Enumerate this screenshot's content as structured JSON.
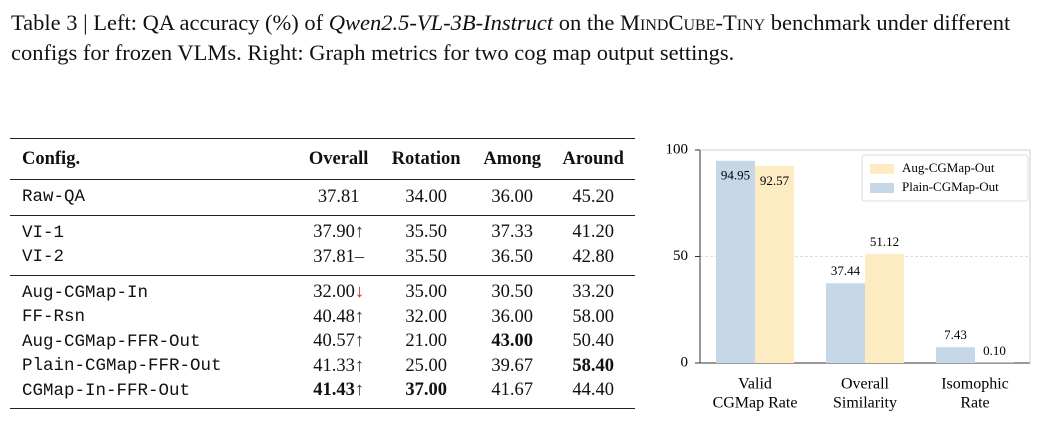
{
  "caption": {
    "prefix": "Table 3 | Left: QA accuracy (%) of",
    "model": "Qwen2.5-VL-3B-Instruct",
    "middle": "on the",
    "benchmark": "MindCube-Tiny",
    "rest": "benchmark under different configs for frozen VLMs. Right: Graph metrics for two cog map output settings."
  },
  "table": {
    "header": [
      "Config.",
      "Overall",
      "Rotation",
      "Among",
      "Around"
    ],
    "groups": [
      [
        {
          "cells": [
            "Raw-QA",
            "37.81",
            "34.00",
            "36.00",
            "45.20"
          ]
        }
      ],
      [
        {
          "cells": [
            "VI-1",
            "37.90",
            "35.50",
            "37.33",
            "41.20"
          ],
          "trend": "↑",
          "trend_dir": "up"
        },
        {
          "cells": [
            "VI-2",
            "37.81",
            "35.50",
            "36.50",
            "42.80"
          ],
          "trend": "–",
          "trend_dir": "same"
        }
      ],
      [
        {
          "cells": [
            "Aug-CGMap-In",
            "32.00",
            "35.00",
            "30.50",
            "33.20"
          ],
          "trend": "↓",
          "trend_dir": "down"
        },
        {
          "cells": [
            "FF-Rsn",
            "40.48",
            "32.00",
            "36.00",
            "58.00"
          ],
          "trend": "↑",
          "trend_dir": "up"
        },
        {
          "cells": [
            "Aug-CGMap-FFR-Out",
            "40.57",
            "21.00",
            "43.00",
            "50.40"
          ],
          "trend": "↑",
          "trend_dir": "up",
          "bold": [
            3
          ]
        },
        {
          "cells": [
            "Plain-CGMap-FFR-Out",
            "41.33",
            "25.00",
            "39.67",
            "58.40"
          ],
          "trend": "↑",
          "trend_dir": "up",
          "bold": [
            4
          ]
        },
        {
          "cells": [
            "CGMap-In-FFR-Out",
            "41.43",
            "37.00",
            "41.67",
            "44.40"
          ],
          "trend": "↑",
          "trend_dir": "up",
          "bold": [
            1,
            2
          ]
        }
      ]
    ]
  },
  "chart_data": {
    "type": "bar",
    "categories": [
      [
        "Valid",
        "CGMap Rate"
      ],
      [
        "Overall",
        "Similarity"
      ],
      [
        "Isomophic",
        "Rate"
      ]
    ],
    "series": [
      {
        "name": "Plain-CGMap-Out",
        "color": "#c6d8e8",
        "values": [
          94.95,
          37.44,
          7.43
        ],
        "value_labels": [
          "94.95",
          "37.44",
          "7.43"
        ]
      },
      {
        "name": "Aug-CGMap-Out",
        "color": "#fdebc2",
        "values": [
          92.57,
          51.12,
          0.1
        ],
        "value_labels": [
          "92.57",
          "51.12",
          "0.10"
        ]
      }
    ],
    "ylim": [
      0,
      100
    ],
    "yticks": [
      0,
      50,
      100
    ],
    "grid": true,
    "legend": "upper right"
  }
}
